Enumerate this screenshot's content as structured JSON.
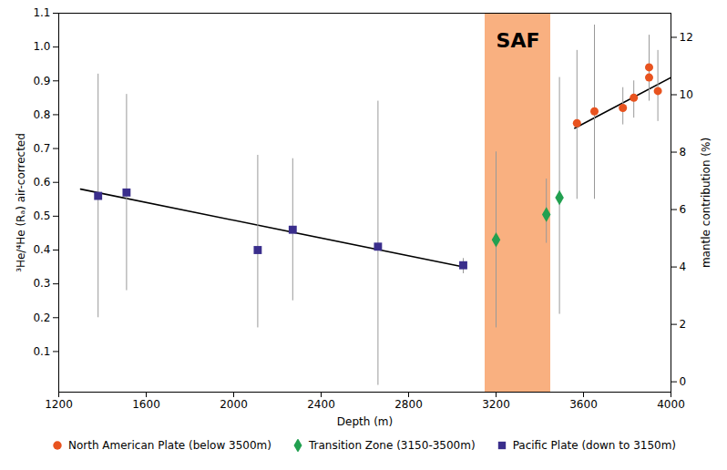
{
  "chart_data": {
    "type": "scatter",
    "x_label": "Depth (m)",
    "y_label": "³He/⁴He (Rₐ) air-corrected",
    "y2_label": "mantle contribution (%)",
    "xlim": [
      1200,
      4000
    ],
    "xticks": [
      1200,
      1600,
      2000,
      2400,
      2800,
      3200,
      3600,
      4000
    ],
    "ylim": [
      -0.02,
      1.1
    ],
    "yticks": [
      0.1,
      0.2,
      0.3,
      0.4,
      0.5,
      0.6,
      0.7,
      0.8,
      0.9,
      {
        "value": 1,
        "label": "1.0"
      },
      1.1
    ],
    "y2lim": [
      -0.36,
      12.84
    ],
    "y2ticks": [
      0,
      2,
      4,
      6,
      8,
      10,
      12
    ],
    "legend": "bottom",
    "grid": false,
    "series": [
      {
        "name": "North American Plate (below 3500m)",
        "color": "#e8531f",
        "marker": "circle",
        "x": [
          3570,
          3650,
          3780,
          3830,
          3900,
          3900,
          3940
        ],
        "values": [
          0.775,
          0.81,
          0.82,
          0.85,
          0.94,
          0.91,
          0.87
        ],
        "error_low": [
          0.55,
          0.55,
          0.77,
          0.79,
          0.85,
          0.84,
          0.78
        ],
        "error_high": [
          0.99,
          1.065,
          0.88,
          0.9,
          1.035,
          1.0,
          0.99
        ]
      },
      {
        "name": "Transition Zone (3150-3500m)",
        "color": "#22a050",
        "marker": "diamond",
        "x": [
          3200,
          3430,
          3490
        ],
        "values": [
          0.43,
          0.505,
          0.555
        ],
        "error_low": [
          0.17,
          0.42,
          0.21
        ],
        "error_high": [
          0.69,
          0.61,
          0.91
        ]
      },
      {
        "name": "Pacific Plate (down to 3150m)",
        "color": "#3a2e8c",
        "marker": "square",
        "x": [
          1380,
          1510,
          2110,
          2270,
          2660,
          3050
        ],
        "values": [
          0.56,
          0.57,
          0.4,
          0.46,
          0.41,
          0.355
        ],
        "error_low": [
          0.2,
          0.28,
          0.17,
          0.25,
          0.0,
          0.33
        ],
        "error_high": [
          0.92,
          0.86,
          0.68,
          0.67,
          0.84,
          0.375
        ]
      }
    ],
    "trend_lines": [
      {
        "x": [
          1300,
          3050
        ],
        "values": [
          0.58,
          0.35
        ]
      },
      {
        "x": [
          3560,
          4000
        ],
        "values": [
          0.76,
          0.91
        ]
      }
    ],
    "annotations": [
      {
        "text": "SAF",
        "x_range": [
          3150,
          3450
        ],
        "color": "#f9b080"
      }
    ]
  }
}
